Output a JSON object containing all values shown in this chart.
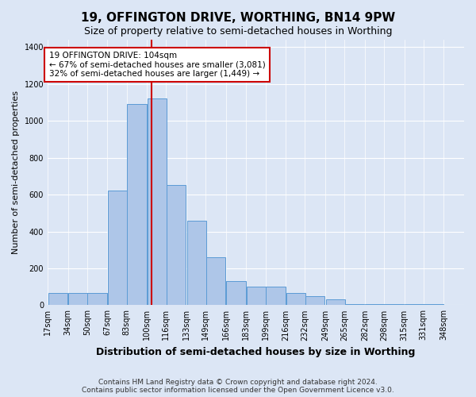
{
  "title": "19, OFFINGTON DRIVE, WORTHING, BN14 9PW",
  "subtitle": "Size of property relative to semi-detached houses in Worthing",
  "xlabel": "Distribution of semi-detached houses by size in Worthing",
  "ylabel": "Number of semi-detached properties",
  "footnote1": "Contains HM Land Registry data © Crown copyright and database right 2024.",
  "footnote2": "Contains public sector information licensed under the Open Government Licence v3.0.",
  "annotation_line1": "19 OFFINGTON DRIVE: 104sqm",
  "annotation_line2": "← 67% of semi-detached houses are smaller (3,081)",
  "annotation_line3": "32% of semi-detached houses are larger (1,449) →",
  "property_size": 104,
  "bin_edges": [
    17,
    34,
    50,
    67,
    83,
    100,
    116,
    133,
    149,
    166,
    183,
    199,
    216,
    232,
    249,
    265,
    282,
    298,
    315,
    331,
    348
  ],
  "bar_heights": [
    65,
    65,
    65,
    620,
    1090,
    1120,
    650,
    460,
    260,
    130,
    100,
    100,
    65,
    50,
    30,
    5,
    5,
    5,
    5,
    5
  ],
  "bar_color": "#aec6e8",
  "bar_edge_color": "#5b9bd5",
  "red_line_color": "#cc0000",
  "ylim": [
    0,
    1440
  ],
  "yticks": [
    0,
    200,
    400,
    600,
    800,
    1000,
    1200,
    1400
  ],
  "tick_labels": [
    "17sqm",
    "34sqm",
    "50sqm",
    "67sqm",
    "83sqm",
    "100sqm",
    "116sqm",
    "133sqm",
    "149sqm",
    "166sqm",
    "183sqm",
    "199sqm",
    "216sqm",
    "232sqm",
    "249sqm",
    "265sqm",
    "282sqm",
    "298sqm",
    "315sqm",
    "331sqm",
    "348sqm"
  ],
  "background_color": "#dce6f5",
  "plot_bg_color": "#dce6f5"
}
